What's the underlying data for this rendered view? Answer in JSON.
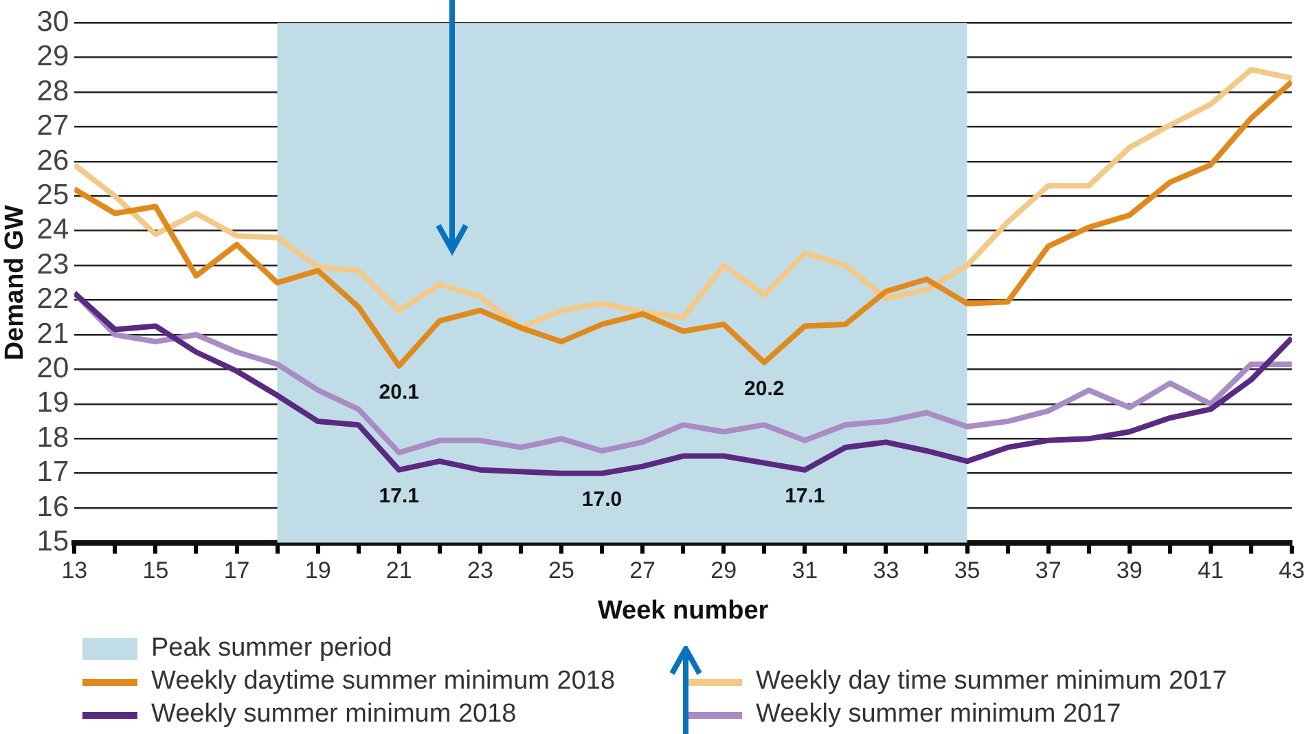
{
  "chart_data": {
    "type": "line",
    "xlabel": "Week number",
    "ylabel": "Demand GW",
    "x": [
      13,
      14,
      15,
      16,
      17,
      18,
      19,
      20,
      21,
      22,
      23,
      24,
      25,
      26,
      27,
      28,
      29,
      30,
      31,
      32,
      33,
      34,
      35,
      36,
      37,
      38,
      39,
      40,
      41,
      42,
      43
    ],
    "series": [
      {
        "name": "Weekly daytime summer minimum 2018",
        "color": "#e08a1e",
        "values": [
          25.2,
          24.5,
          24.7,
          22.7,
          23.6,
          22.5,
          22.85,
          21.8,
          20.1,
          21.4,
          21.7,
          21.2,
          20.8,
          21.3,
          21.6,
          21.1,
          21.3,
          20.2,
          21.25,
          21.3,
          22.25,
          22.6,
          21.9,
          21.95,
          23.55,
          24.1,
          24.45,
          25.4,
          25.9,
          27.25,
          28.3
        ]
      },
      {
        "name": "Weekly day time summer minimum 2017",
        "color": "#f3c98a",
        "values": [
          25.9,
          25.0,
          23.9,
          24.5,
          23.85,
          23.8,
          22.95,
          22.85,
          21.7,
          22.45,
          22.1,
          21.2,
          21.7,
          21.9,
          21.65,
          21.5,
          23.0,
          22.15,
          23.35,
          23.0,
          22.05,
          22.3,
          23.0,
          24.25,
          25.3,
          25.3,
          26.4,
          27.05,
          27.65,
          28.65,
          28.4
        ]
      },
      {
        "name": "Weekly summer minimum 2018",
        "color": "#5a2a82",
        "values": [
          22.2,
          21.15,
          21.25,
          20.5,
          19.95,
          19.25,
          18.5,
          18.4,
          17.1,
          17.35,
          17.1,
          17.05,
          17.0,
          17.0,
          17.2,
          17.5,
          17.5,
          17.3,
          17.1,
          17.75,
          17.9,
          17.65,
          17.35,
          17.75,
          17.95,
          18.0,
          18.2,
          18.6,
          18.85,
          19.7,
          20.9
        ]
      },
      {
        "name": "Weekly summer minimum 2017",
        "color": "#a98cc4",
        "values": [
          22.2,
          21.0,
          20.8,
          21.0,
          20.5,
          20.15,
          19.4,
          18.85,
          17.6,
          17.95,
          17.95,
          17.75,
          18.0,
          17.65,
          17.9,
          18.4,
          18.2,
          18.4,
          17.95,
          18.4,
          18.5,
          18.75,
          18.35,
          18.5,
          18.8,
          19.4,
          18.9,
          19.6,
          19.0,
          20.15,
          20.15
        ]
      }
    ],
    "bands": [
      {
        "axis": "x",
        "from": 18,
        "to": 35,
        "label": "Peak summer period",
        "color": "#c0dde7"
      }
    ],
    "annotations": [
      {
        "text": "20.1",
        "x": 21,
        "y": 20.1
      },
      {
        "text": "20.2",
        "x": 30,
        "y": 20.2
      },
      {
        "text": "17.1",
        "x": 21,
        "y": 17.1
      },
      {
        "text": "17.0",
        "x": 26,
        "y": 17.0
      },
      {
        "text": "17.1",
        "x": 31,
        "y": 17.1
      }
    ],
    "xlim": [
      13,
      43
    ],
    "xticks": [
      13,
      {
        "value": 14,
        "label": null
      },
      15,
      {
        "value": 16,
        "label": null
      },
      17,
      {
        "value": 18,
        "label": null
      },
      19,
      {
        "value": 20,
        "label": null
      },
      21,
      {
        "value": 22,
        "label": null
      },
      23,
      {
        "value": 24,
        "label": null
      },
      25,
      {
        "value": 26,
        "label": null
      },
      27,
      {
        "value": 28,
        "label": null
      },
      29,
      {
        "value": 30,
        "label": null
      },
      31,
      {
        "value": 32,
        "label": null
      },
      33,
      {
        "value": 34,
        "label": null
      },
      35,
      {
        "value": 36,
        "label": null
      },
      37,
      {
        "value": 38,
        "label": null
      },
      39,
      {
        "value": 40,
        "label": null
      },
      41,
      {
        "value": 42,
        "label": null
      },
      43
    ],
    "ylim": [
      15,
      30
    ],
    "yticks": [
      15,
      16,
      17,
      18,
      19,
      20,
      21,
      22,
      23,
      24,
      25,
      26,
      27,
      28,
      29,
      30
    ],
    "grid": "y",
    "legend": "bottom",
    "marker": "none",
    "line_style": "solid"
  }
}
